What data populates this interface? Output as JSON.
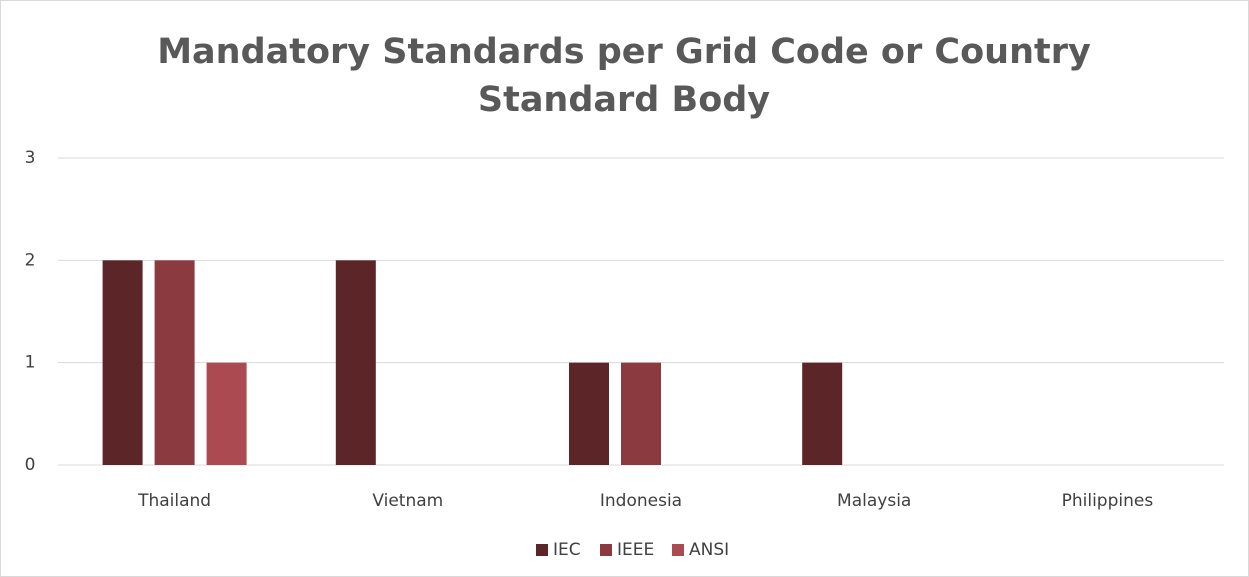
{
  "chart_data": {
    "type": "bar",
    "title": "Mandatory Standards per Grid Code or Country Standard Body",
    "categories": [
      "Thailand",
      "Vietnam",
      "Indonesia",
      "Malaysia",
      "Philippines"
    ],
    "series": [
      {
        "name": "IEC",
        "color": "#5c2528",
        "values": [
          2,
          2,
          1,
          1,
          0
        ]
      },
      {
        "name": "IEEE",
        "color": "#8b3a3f",
        "values": [
          2,
          0,
          1,
          0,
          0
        ]
      },
      {
        "name": "ANSI",
        "color": "#ab4b51",
        "values": [
          1,
          0,
          0,
          0,
          0
        ]
      }
    ],
    "ylim": [
      0,
      3
    ],
    "yticks": [
      0,
      1,
      2,
      3
    ],
    "grid": true,
    "legend": "bottom"
  }
}
